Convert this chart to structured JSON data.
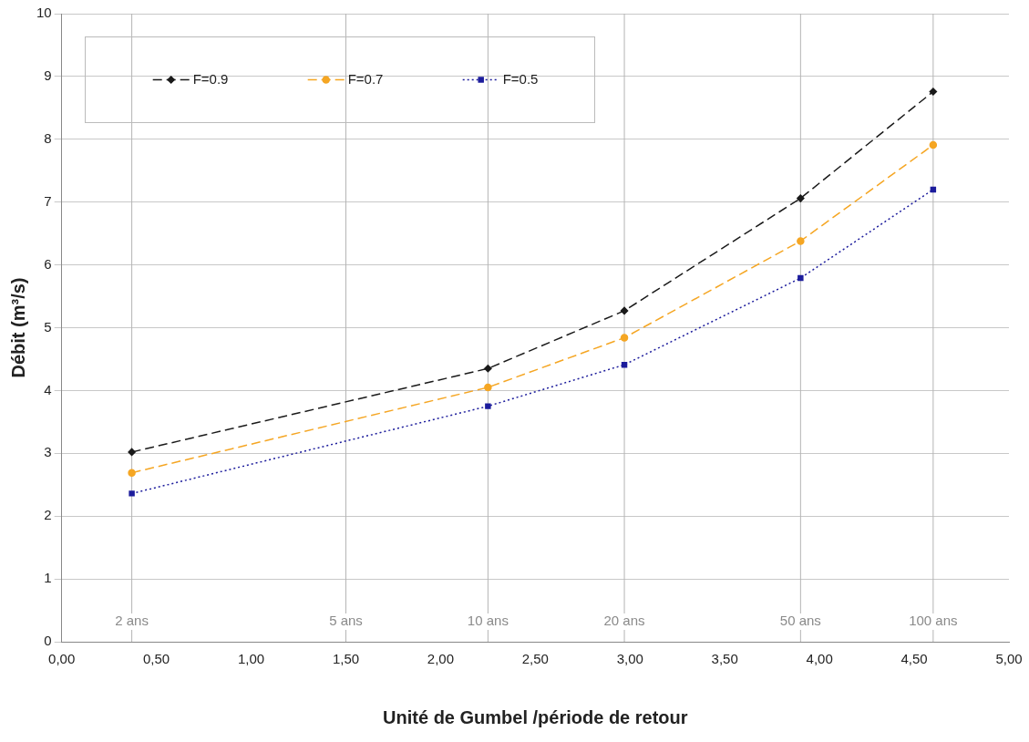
{
  "chart_data": {
    "type": "line",
    "xlabel": "Unité de Gumbel /période de retour",
    "ylabel": "Débit (m³/s)",
    "xlim": [
      0,
      5
    ],
    "xticks": [
      {
        "value": 0,
        "label": "0,00"
      },
      {
        "value": 0.5,
        "label": "0,50"
      },
      {
        "value": 1,
        "label": "1,00"
      },
      {
        "value": 1.5,
        "label": "1,50"
      },
      {
        "value": 2,
        "label": "2,00"
      },
      {
        "value": 2.5,
        "label": "2,50"
      },
      {
        "value": 3,
        "label": "3,00"
      },
      {
        "value": 3.5,
        "label": "3,50"
      },
      {
        "value": 4,
        "label": "4,00"
      },
      {
        "value": 4.5,
        "label": "4,50"
      },
      {
        "value": 5,
        "label": "5,00"
      }
    ],
    "ylim": [
      0,
      10
    ],
    "yticks": [
      0,
      1,
      2,
      3,
      4,
      5,
      6,
      7,
      8,
      9,
      10
    ],
    "grid": "y",
    "legend": "top left",
    "x": [
      0.37,
      2.25,
      2.97,
      3.9,
      4.6
    ],
    "series": [
      {
        "name": "F=0.9",
        "color": "#1a1a1a",
        "values": [
          3.02,
          4.35,
          5.27,
          7.06,
          8.76
        ],
        "marker": "diamond",
        "line_style": "dashed"
      },
      {
        "name": "F=0.7",
        "color": "#f5a623",
        "values": [
          2.69,
          4.05,
          4.84,
          6.38,
          7.91
        ],
        "marker": "circle",
        "line_style": "dashed"
      },
      {
        "name": "F=0.5",
        "color": "#1c1c9c",
        "values": [
          2.36,
          3.75,
          4.41,
          5.79,
          7.2
        ],
        "marker": "square",
        "line_style": "dotted"
      }
    ],
    "ref_lines": [
      {
        "axis": "x",
        "value": 0.37,
        "label": "2 ans",
        "color": "#b4b4b4"
      },
      {
        "axis": "x",
        "value": 1.5,
        "label": "5 ans",
        "color": "#b4b4b4"
      },
      {
        "axis": "x",
        "value": 2.25,
        "label": "10 ans",
        "color": "#b4b4b4"
      },
      {
        "axis": "x",
        "value": 2.97,
        "label": "20 ans",
        "color": "#b4b4b4"
      },
      {
        "axis": "x",
        "value": 3.9,
        "label": "50 ans",
        "color": "#b4b4b4"
      },
      {
        "axis": "x",
        "value": 4.6,
        "label": "100 ans",
        "color": "#b4b4b4"
      }
    ]
  }
}
